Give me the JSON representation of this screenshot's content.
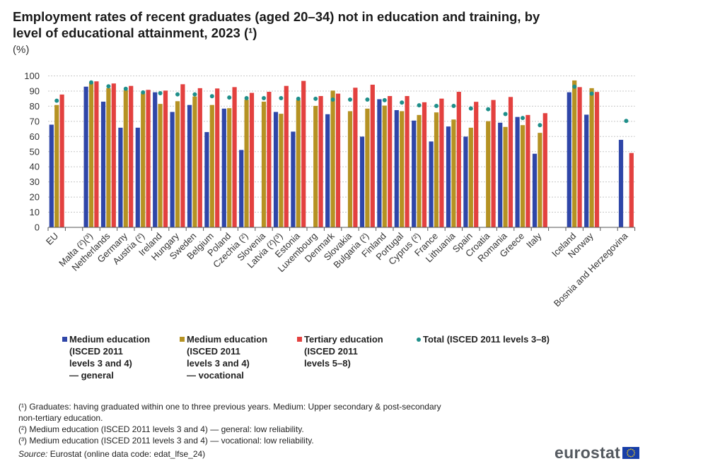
{
  "header": {
    "title": "Employment rates of recent graduates (aged 20–34) not in education and training, by level of educational attainment, 2023 (¹)",
    "unit": "(%)"
  },
  "colors": {
    "medium_general": "#2f46a8",
    "medium_vocational": "#b59223",
    "tertiary": "#e3413f",
    "total": "#1f8f8a",
    "grid": "#c8c8c8"
  },
  "chart_data": {
    "type": "bar",
    "title": "Employment rates of recent graduates (aged 20–34) not in education and training, by level of educational attainment, 2023 (¹)",
    "ylabel": "(%)",
    "xlabel": "",
    "ylim": [
      0,
      100
    ],
    "yticks": [
      "0",
      "10",
      "20",
      "30",
      "40",
      "50",
      "60",
      "70",
      "80",
      "90",
      "100"
    ],
    "grid": true,
    "legend_position": "bottom",
    "categories": [
      "EU",
      "",
      "Malta (²)(³)",
      "Netherlands",
      "Germany",
      "Austria (²)",
      "Ireland",
      "Hungary",
      "Sweden",
      "Belgium",
      "Poland",
      "Czechia (²)",
      "Slovenia",
      "Latvia (²)(³)",
      "Estonia",
      "Luxembourg",
      "Denmark",
      "Slovakia",
      "Bulgaria (²)",
      "Finland",
      "Portugal",
      "Cyprus (²)",
      "France",
      "Lithuania",
      "Spain",
      "Croatia",
      "Romania",
      "Greece",
      "Italy",
      "",
      "Iceland",
      "Norway",
      "",
      "Bosnia and Herzegovina"
    ],
    "series": [
      {
        "name": "Medium education (ISCED 2011 levels 3 and 4) — general",
        "kind": "bar",
        "values": [
          67.8,
          null,
          92.9,
          83.0,
          65.8,
          65.8,
          89.2,
          76.2,
          80.8,
          62.9,
          78.4,
          51.1,
          null,
          76.2,
          63.2,
          null,
          74.7,
          null,
          59.9,
          84.6,
          77.4,
          70.5,
          56.7,
          66.6,
          59.9,
          null,
          69.1,
          72.9,
          48.6,
          null,
          89.2,
          74.4,
          null,
          57.8
        ]
      },
      {
        "name": "Medium education (ISCED 2011 levels 3 and 4) — vocational",
        "kind": "bar",
        "values": [
          80.8,
          null,
          95.4,
          91.9,
          90.6,
          88.4,
          81.5,
          83.3,
          86.4,
          80.8,
          78.7,
          84.3,
          83.0,
          75.0,
          84.1,
          80.2,
          90.3,
          76.7,
          78.4,
          80.4,
          76.7,
          74.2,
          75.9,
          71.2,
          65.8,
          70.1,
          66.3,
          67.5,
          62.4,
          null,
          97.0,
          91.9,
          null,
          null
        ]
      },
      {
        "name": "Tertiary education (ISCED 2011 levels 5–8)",
        "kind": "bar",
        "values": [
          87.7,
          null,
          96.4,
          95.0,
          93.4,
          90.8,
          90.3,
          94.5,
          91.9,
          91.7,
          92.6,
          88.8,
          89.5,
          93.4,
          96.7,
          86.7,
          88.3,
          92.2,
          94.2,
          86.7,
          86.7,
          82.6,
          85.0,
          89.5,
          82.9,
          84.1,
          86.1,
          74.2,
          75.4,
          null,
          92.6,
          89.4,
          null,
          49.1
        ]
      },
      {
        "name": "Total (ISCED 2011 levels 3–8)",
        "kind": "dot",
        "values": [
          83.6,
          null,
          95.7,
          93.1,
          91.5,
          89.1,
          88.6,
          87.8,
          87.8,
          86.6,
          85.7,
          85.3,
          85.3,
          85.3,
          84.9,
          84.9,
          84.4,
          84.4,
          84.4,
          84.0,
          82.4,
          80.6,
          80.2,
          80.2,
          78.5,
          78.0,
          74.8,
          72.2,
          67.5,
          null,
          92.9,
          88.3,
          null,
          70.3
        ]
      }
    ]
  },
  "legend": {
    "items": [
      {
        "label": "Medium education\n(ISCED 2011\nlevels 3 and 4)\n — general"
      },
      {
        "label": "Medium education\n(ISCED 2011\nlevels 3 and 4)\n— vocational"
      },
      {
        "label": "Tertiary education\n(ISCED 2011\nlevels 5–8)"
      },
      {
        "label": "Total (ISCED 2011 levels 3–8)"
      }
    ]
  },
  "notes": {
    "note1_line1": "(¹) Graduates: having graduated within one to three previous years. Medium: Upper secondary & post-secondary",
    "note1_line2": "non-tertiary education.",
    "note2": "(²) Medium education (ISCED 2011 levels 3 and 4) — general: low reliability.",
    "note3": "(³) Medium education (ISCED 2011 levels 3 and 4) — vocational: low reliability.",
    "source_label": "Source:",
    "source_text": " Eurostat (online data code: edat_lfse_24)"
  },
  "logo": {
    "text": "eurostat"
  }
}
